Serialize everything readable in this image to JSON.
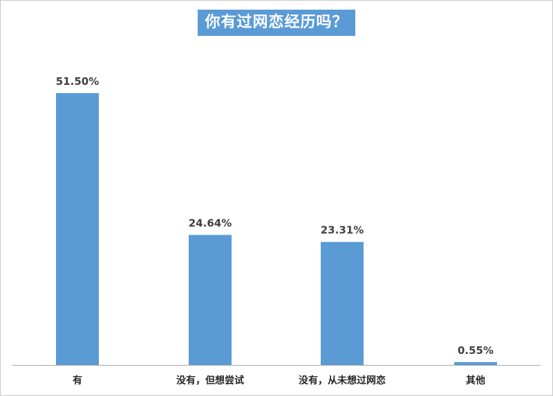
{
  "chart_data": {
    "type": "bar",
    "title": "你有过网恋经历吗？",
    "categories": [
      "有",
      "没有，但想尝试",
      "没有，从未想过网恋",
      "其他"
    ],
    "values": [
      51.5,
      24.64,
      23.31,
      0.55
    ],
    "value_labels": [
      "51.50%",
      "24.64%",
      "23.31%",
      "0.55%"
    ],
    "unit": "%",
    "ylim": [
      0,
      51.5
    ],
    "grid": false,
    "legend": "none",
    "bar_color": "#5b9bd5"
  }
}
